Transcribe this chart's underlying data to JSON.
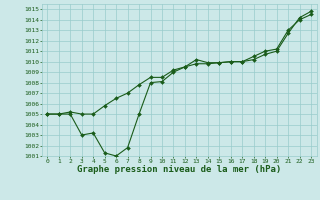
{
  "title": "Graphe pression niveau de la mer (hPa)",
  "bg_color": "#cce8e8",
  "grid_color": "#99cccc",
  "line_color": "#1a5c1a",
  "xlim": [
    -0.5,
    23.5
  ],
  "ylim": [
    1001,
    1015.5
  ],
  "xticks": [
    0,
    1,
    2,
    3,
    4,
    5,
    6,
    7,
    8,
    9,
    10,
    11,
    12,
    13,
    14,
    15,
    16,
    17,
    18,
    19,
    20,
    21,
    22,
    23
  ],
  "yticks": [
    1001,
    1002,
    1003,
    1004,
    1005,
    1006,
    1007,
    1008,
    1009,
    1010,
    1011,
    1012,
    1013,
    1014,
    1015
  ],
  "line1_x": [
    0,
    1,
    2,
    3,
    4,
    5,
    6,
    7,
    8,
    9,
    10,
    11,
    12,
    13,
    14,
    15,
    16,
    17,
    18,
    19,
    20,
    21,
    22,
    23
  ],
  "line1_y": [
    1005.0,
    1005.0,
    1005.0,
    1003.0,
    1003.2,
    1001.3,
    1001.0,
    1001.8,
    1005.0,
    1008.0,
    1008.1,
    1009.0,
    1009.5,
    1009.8,
    1009.8,
    1009.9,
    1010.0,
    1010.0,
    1010.5,
    1011.0,
    1011.2,
    1013.0,
    1014.0,
    1014.5
  ],
  "line2_x": [
    0,
    1,
    2,
    3,
    4,
    5,
    6,
    7,
    8,
    9,
    10,
    11,
    12,
    13,
    14,
    15,
    16,
    17,
    18,
    19,
    20,
    21,
    22,
    23
  ],
  "line2_y": [
    1005.0,
    1005.0,
    1005.2,
    1005.0,
    1005.0,
    1005.8,
    1006.5,
    1007.0,
    1007.8,
    1008.5,
    1008.5,
    1009.2,
    1009.5,
    1010.2,
    1009.9,
    1009.9,
    1010.0,
    1010.0,
    1010.2,
    1010.7,
    1011.0,
    1012.7,
    1014.2,
    1014.8
  ],
  "title_fontsize": 6.5,
  "tick_fontsize": 4.5,
  "linewidth": 0.8,
  "markersize": 2.0
}
